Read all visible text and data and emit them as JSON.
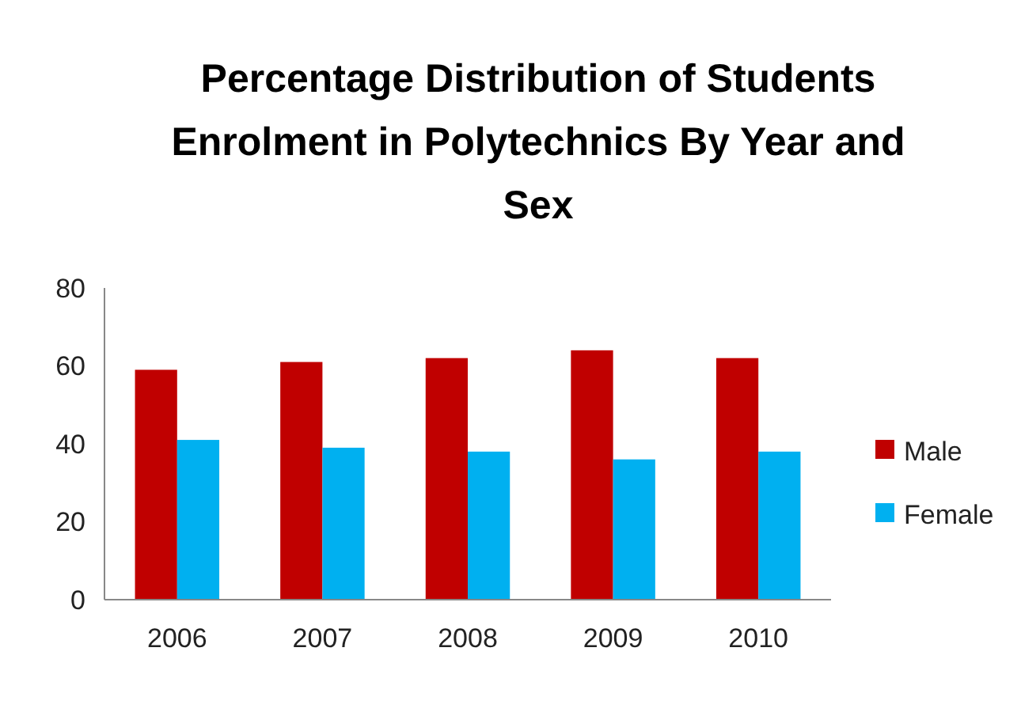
{
  "chart_data": {
    "type": "bar",
    "title": "Percentage Distribution of Students Enrolment in Polytechnics By Year and Sex",
    "categories": [
      "2006",
      "2007",
      "2008",
      "2009",
      "2010"
    ],
    "series": [
      {
        "name": "Male",
        "color": "#c00000",
        "values": [
          59,
          61,
          62,
          64,
          62
        ]
      },
      {
        "name": "Female",
        "color": "#00b0f0",
        "values": [
          41,
          39,
          38,
          36,
          38
        ]
      }
    ],
    "ylim": [
      0,
      80
    ],
    "yticks": [
      0,
      20,
      40,
      60,
      80
    ],
    "grid": false,
    "legend": "right"
  }
}
